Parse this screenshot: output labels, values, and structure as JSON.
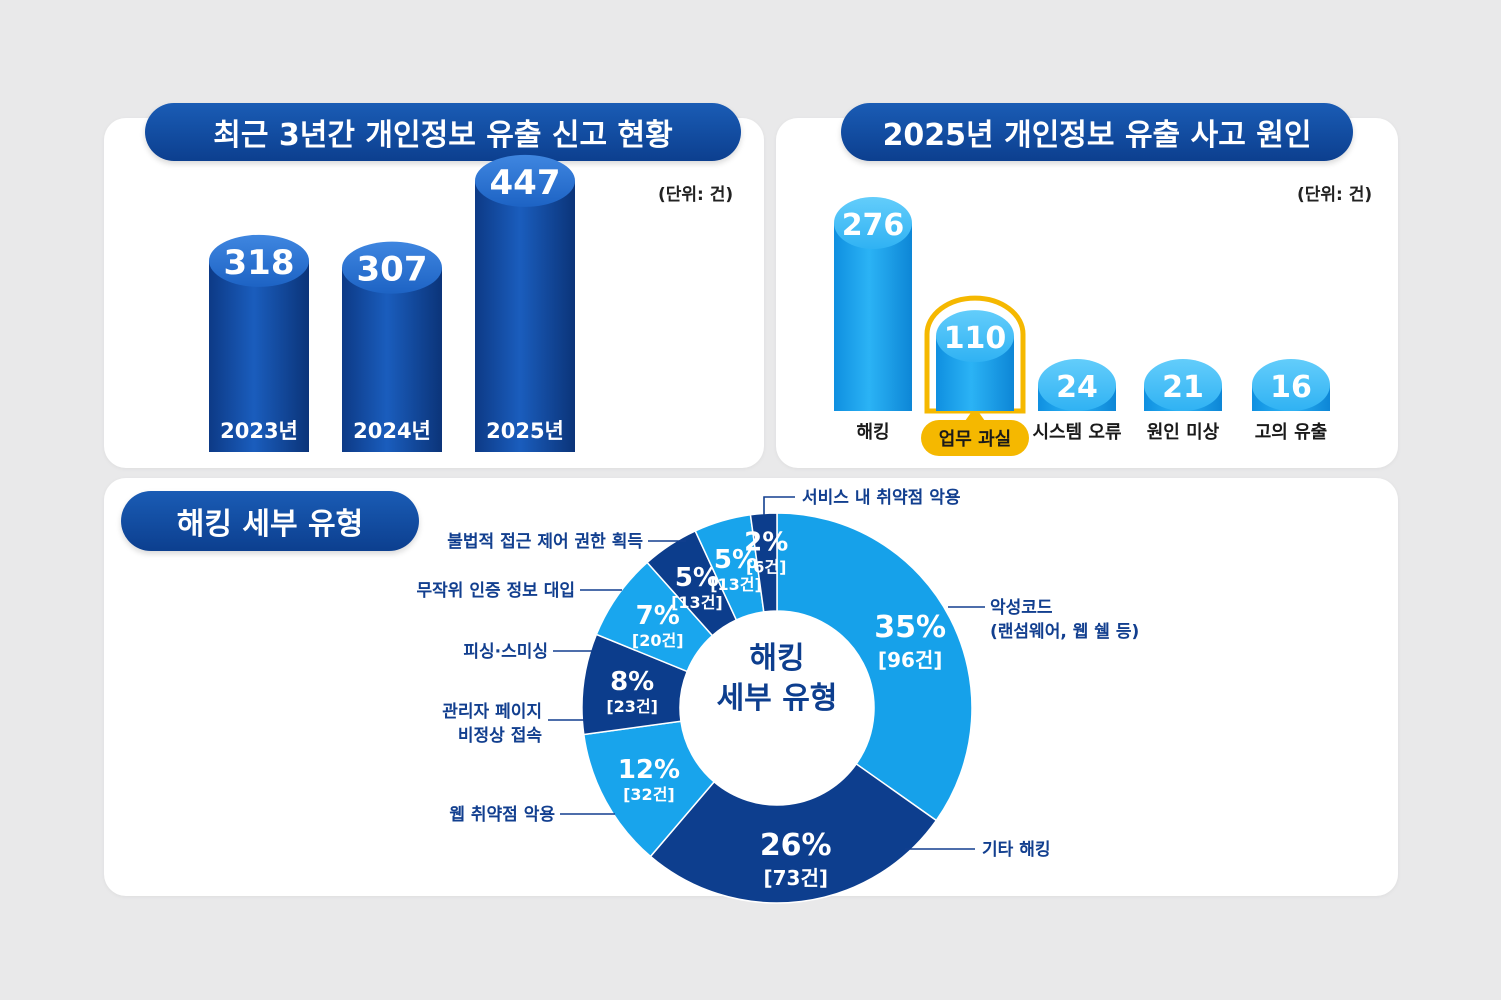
{
  "yearly": {
    "title": "최근 3년간 개인정보 유출 신고 현황",
    "unit": "(단위: 건)"
  },
  "cause": {
    "title": "2025년 개인정보 유출 사고 원인",
    "unit": "(단위: 건)"
  },
  "hacking": {
    "title": "해킹 세부 유형",
    "center_line1": "해킹",
    "center_line2": "세부 유형"
  },
  "colors": {
    "navy": "#0d3f8f",
    "blue": "#1259b8",
    "sky": "#1aa3ec",
    "highlight": "#f5b800"
  },
  "chart_data": [
    {
      "type": "bar",
      "categories": [
        "2023년",
        "2024년",
        "2025년"
      ],
      "values": [
        318,
        307,
        447
      ],
      "title": "최근 3년간 개인정보 유출 신고 현황",
      "ylabel": "",
      "unit": "(단위: 건)"
    },
    {
      "type": "bar",
      "categories": [
        "해킹",
        "업무 과실",
        "시스템 오류",
        "원인 미상",
        "고의 유출"
      ],
      "values": [
        276,
        110,
        24,
        21,
        16
      ],
      "highlight": "업무 과실",
      "title": "2025년 개인정보 유출 사고 원인",
      "unit": "(단위: 건)"
    },
    {
      "type": "pie",
      "title": "해킹 세부 유형",
      "slices": [
        {
          "label": "악성코드\n(랜섬웨어, 웹 쉘 등)",
          "pct": "35%",
          "count": "[96건]",
          "value": 96
        },
        {
          "label": "기타 해킹",
          "pct": "26%",
          "count": "[73건]",
          "value": 73
        },
        {
          "label": "웹 취약점 악용",
          "pct": "12%",
          "count": "[32건]",
          "value": 32
        },
        {
          "label": "관리자 페이지\n비정상 접속",
          "pct": "8%",
          "count": "[23건]",
          "value": 23
        },
        {
          "label": "피싱·스미싱",
          "pct": "7%",
          "count": "[20건]",
          "value": 20
        },
        {
          "label": "무작위 인증 정보 대입",
          "pct": "5%",
          "count": "[13건]",
          "value": 13
        },
        {
          "label": "불법적 접근 제어 권한 획득",
          "pct": "5%",
          "count": "[13건]",
          "value": 13
        },
        {
          "label": "서비스 내 취약점 악용",
          "pct": "2%",
          "count": "[6건]",
          "value": 6
        }
      ]
    }
  ]
}
